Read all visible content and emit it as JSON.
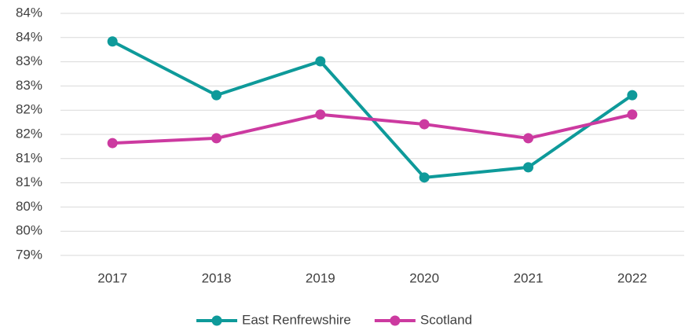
{
  "chart_data": {
    "type": "line",
    "categories": [
      "2017",
      "2018",
      "2019",
      "2020",
      "2021",
      "2022"
    ],
    "series": [
      {
        "name": "East Renfrewshire",
        "color": "#0e9a9a",
        "values": [
          83.42,
          82.31,
          83.01,
          80.61,
          80.82,
          82.31
        ]
      },
      {
        "name": "Scotland",
        "color": "#cc3aa0",
        "values": [
          81.32,
          81.42,
          81.91,
          81.71,
          81.42,
          81.91
        ]
      }
    ],
    "ylim": [
      79,
      84
    ],
    "yticks": [
      {
        "value": 79,
        "label": "79%"
      },
      {
        "value": 79.5,
        "label": "80%"
      },
      {
        "value": 80,
        "label": "80%"
      },
      {
        "value": 80.5,
        "label": "81%"
      },
      {
        "value": 81,
        "label": "81%"
      },
      {
        "value": 81.5,
        "label": "82%"
      },
      {
        "value": 82,
        "label": "82%"
      },
      {
        "value": 82.5,
        "label": "83%"
      },
      {
        "value": 83,
        "label": "83%"
      },
      {
        "value": 83.5,
        "label": "84%"
      },
      {
        "value": 84,
        "label": "84%"
      }
    ],
    "grid": true,
    "legend": "bottom"
  }
}
